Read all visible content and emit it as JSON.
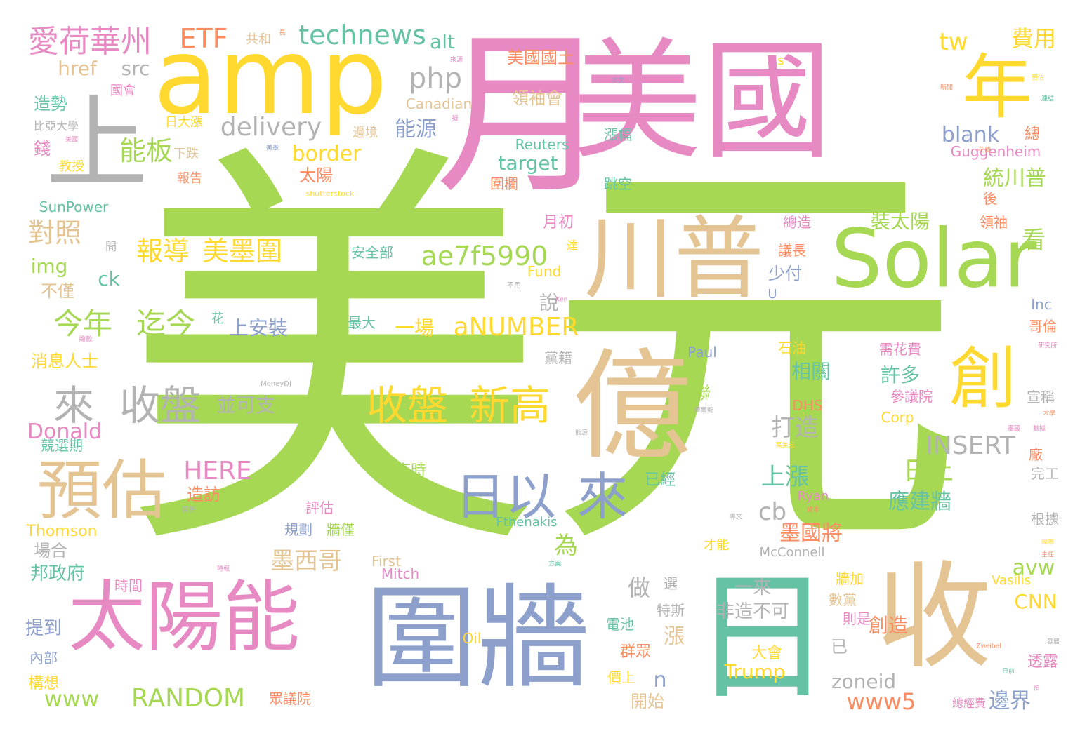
{
  "colors": {
    "green": "#a6d854",
    "pink": "#e78ac3",
    "yellow": "#ffd92f",
    "tan": "#e5c494",
    "blue": "#8da0cb",
    "teal": "#66c2a5",
    "orange": "#fc8d62",
    "gray": "#b3b3b3"
  },
  "words": [
    {
      "t": "美元",
      "c": "green"
    },
    {
      "t": "美國",
      "c": "pink"
    },
    {
      "t": "月",
      "c": "pink"
    },
    {
      "t": "amp",
      "c": "yellow"
    },
    {
      "t": "Solar",
      "c": "green"
    },
    {
      "t": "圍牆",
      "c": "blue"
    },
    {
      "t": "收",
      "c": "tan"
    },
    {
      "t": "日",
      "c": "teal"
    },
    {
      "t": "億",
      "c": "tan"
    },
    {
      "t": "川普",
      "c": "tan"
    },
    {
      "t": "太陽能",
      "c": "pink"
    },
    {
      "t": "上",
      "c": "gray"
    },
    {
      "t": "年",
      "c": "yellow"
    },
    {
      "t": "預估",
      "c": "tan"
    },
    {
      "t": "創",
      "c": "yellow"
    },
    {
      "t": "日以",
      "c": "blue"
    },
    {
      "t": "來",
      "c": "blue"
    },
    {
      "t": "收盤",
      "c": "yellow"
    },
    {
      "t": "新高",
      "c": "yellow"
    },
    {
      "t": "來",
      "c": "gray"
    },
    {
      "t": "收盤",
      "c": "gray"
    },
    {
      "t": "愛荷華州",
      "c": "pink"
    },
    {
      "t": "ETF",
      "c": "orange"
    },
    {
      "t": "technews",
      "c": "teal"
    },
    {
      "t": "alt",
      "c": "teal"
    },
    {
      "t": "tw",
      "c": "yellow"
    },
    {
      "t": "費用",
      "c": "yellow"
    },
    {
      "t": "美國國土",
      "c": "orange"
    },
    {
      "t": "領袖會",
      "c": "tan"
    },
    {
      "t": "php",
      "c": "gray"
    },
    {
      "t": "href",
      "c": "tan"
    },
    {
      "t": "src",
      "c": "gray"
    },
    {
      "t": "delivery",
      "c": "gray"
    },
    {
      "t": "能板",
      "c": "green"
    },
    {
      "t": "能源",
      "c": "blue"
    },
    {
      "t": "border",
      "c": "yellow"
    },
    {
      "t": "blank",
      "c": "blue"
    },
    {
      "t": "Reuters",
      "c": "teal"
    },
    {
      "t": "Guggenheim",
      "c": "pink"
    },
    {
      "t": "target",
      "c": "teal"
    },
    {
      "t": "太陽",
      "c": "orange"
    },
    {
      "t": "統川普",
      "c": "green"
    },
    {
      "t": "SunPower",
      "c": "teal"
    },
    {
      "t": "對照",
      "c": "tan"
    },
    {
      "t": "報導",
      "c": "yellow"
    },
    {
      "t": "美墨圍",
      "c": "yellow"
    },
    {
      "t": "ae7f5990",
      "c": "green"
    },
    {
      "t": "裝太陽",
      "c": "green"
    },
    {
      "t": "看",
      "c": "green"
    },
    {
      "t": "img",
      "c": "green"
    },
    {
      "t": "ck",
      "c": "teal"
    },
    {
      "t": "今年",
      "c": "green"
    },
    {
      "t": "迄今",
      "c": "green"
    },
    {
      "t": "上安裝",
      "c": "blue"
    },
    {
      "t": "一場",
      "c": "yellow"
    },
    {
      "t": "aNUMBER",
      "c": "yellow"
    },
    {
      "t": "並可支",
      "c": "gray"
    },
    {
      "t": "打造",
      "c": "gray"
    },
    {
      "t": "INSERT",
      "c": "gray"
    },
    {
      "t": "相關",
      "c": "teal"
    },
    {
      "t": "許多",
      "c": "teal"
    },
    {
      "t": "HERE",
      "c": "pink"
    },
    {
      "t": "上漲",
      "c": "teal"
    },
    {
      "t": "日上",
      "c": "green"
    },
    {
      "t": "應建牆",
      "c": "teal"
    },
    {
      "t": "cb",
      "c": "gray"
    },
    {
      "t": "墨國將",
      "c": "orange"
    },
    {
      "t": "為",
      "c": "green"
    },
    {
      "t": "墨西哥",
      "c": "tan"
    },
    {
      "t": "avw",
      "c": "green"
    },
    {
      "t": "Donald",
      "c": "pink"
    },
    {
      "t": "Thomson",
      "c": "yellow"
    },
    {
      "t": "邦政府",
      "c": "teal"
    },
    {
      "t": "做",
      "c": "gray"
    },
    {
      "t": "一來",
      "c": "gray"
    },
    {
      "t": "非造不可",
      "c": "gray"
    },
    {
      "t": "CNN",
      "c": "yellow"
    },
    {
      "t": "創造",
      "c": "orange"
    },
    {
      "t": "漲",
      "c": "tan"
    },
    {
      "t": "n",
      "c": "blue"
    },
    {
      "t": "www",
      "c": "green"
    },
    {
      "t": "RANDOM",
      "c": "green"
    },
    {
      "t": "zoneid",
      "c": "gray"
    },
    {
      "t": "www5",
      "c": "orange"
    },
    {
      "t": "邊界",
      "c": "blue"
    },
    {
      "t": "Trump",
      "c": "yellow"
    },
    {
      "t": "大會",
      "c": "yellow"
    },
    {
      "t": "透露",
      "c": "pink"
    },
    {
      "t": "構想",
      "c": "yellow"
    },
    {
      "t": "提到",
      "c": "blue"
    },
    {
      "t": "群眾",
      "c": "orange"
    },
    {
      "t": "開始",
      "c": "tan"
    },
    {
      "t": "消息人士",
      "c": "yellow"
    },
    {
      "t": "不僅",
      "c": "tan"
    },
    {
      "t": "造勢",
      "c": "teal"
    },
    {
      "t": "錢",
      "c": "pink"
    },
    {
      "t": "比亞大學",
      "c": "gray"
    },
    {
      "t": "教授",
      "c": "yellow"
    },
    {
      "t": "共和",
      "c": "tan"
    },
    {
      "t": "國會",
      "c": "pink"
    },
    {
      "t": "日大漲",
      "c": "yellow"
    },
    {
      "t": "下跌",
      "c": "tan"
    },
    {
      "t": "報告",
      "c": "orange"
    },
    {
      "t": "shutterstock",
      "c": "yellow"
    },
    {
      "t": "Canadian",
      "c": "tan"
    },
    {
      "t": "邊境",
      "c": "tan"
    },
    {
      "t": "漲幅",
      "c": "teal"
    },
    {
      "t": "跳空",
      "c": "teal"
    },
    {
      "t": "圍欄",
      "c": "orange"
    },
    {
      "t": "月初",
      "c": "pink"
    },
    {
      "t": "安全部",
      "c": "teal"
    },
    {
      "t": "少付",
      "c": "blue"
    },
    {
      "t": "說",
      "c": "gray"
    },
    {
      "t": "Fund",
      "c": "yellow"
    },
    {
      "t": "總造",
      "c": "pink"
    },
    {
      "t": "議長",
      "c": "orange"
    },
    {
      "t": "領袖",
      "c": "orange"
    },
    {
      "t": "後",
      "c": "orange"
    },
    {
      "t": "總",
      "c": "orange"
    },
    {
      "t": "s",
      "c": "yellow"
    },
    {
      "t": "Inc",
      "c": "blue"
    },
    {
      "t": "哥倫",
      "c": "orange"
    },
    {
      "t": "宣稱",
      "c": "gray"
    },
    {
      "t": "需花費",
      "c": "pink"
    },
    {
      "t": "參議院",
      "c": "pink"
    },
    {
      "t": "Corp",
      "c": "yellow"
    },
    {
      "t": "DHS",
      "c": "orange"
    },
    {
      "t": "黨籍",
      "c": "gray"
    },
    {
      "t": "Paul",
      "c": "blue"
    },
    {
      "t": "石油",
      "c": "yellow"
    },
    {
      "t": "聯",
      "c": "green"
    },
    {
      "t": "最大",
      "c": "teal"
    },
    {
      "t": "花",
      "c": "teal"
    },
    {
      "t": "MoneyDJ",
      "c": "gray"
    },
    {
      "t": "競選期",
      "c": "teal"
    },
    {
      "t": "造訪",
      "c": "orange"
    },
    {
      "t": "評估",
      "c": "pink"
    },
    {
      "t": "規劃",
      "c": "blue"
    },
    {
      "t": "牆僅",
      "c": "green"
    },
    {
      "t": "商時",
      "c": "green"
    },
    {
      "t": "首次",
      "c": "green"
    },
    {
      "t": "已經",
      "c": "teal"
    },
    {
      "t": "Ryan",
      "c": "pink"
    },
    {
      "t": "Fthenakis",
      "c": "teal"
    },
    {
      "t": "McConnell",
      "c": "gray"
    },
    {
      "t": "才能",
      "c": "yellow"
    },
    {
      "t": "First",
      "c": "tan"
    },
    {
      "t": "Mitch",
      "c": "pink"
    },
    {
      "t": "時間",
      "c": "pink"
    },
    {
      "t": "場合",
      "c": "gray"
    },
    {
      "t": "選",
      "c": "gray"
    },
    {
      "t": "特斯",
      "c": "gray"
    },
    {
      "t": "電池",
      "c": "teal"
    },
    {
      "t": "Oil",
      "c": "yellow"
    },
    {
      "t": "價上",
      "c": "yellow"
    },
    {
      "t": "眾議院",
      "c": "orange"
    },
    {
      "t": "已",
      "c": "gray"
    },
    {
      "t": "牆加",
      "c": "yellow"
    },
    {
      "t": "數黨",
      "c": "tan"
    },
    {
      "t": "則是",
      "c": "pink"
    },
    {
      "t": "總經費",
      "c": "pink"
    },
    {
      "t": "內部",
      "c": "blue"
    },
    {
      "t": "Vasilis",
      "c": "yellow"
    },
    {
      "t": "完工",
      "c": "gray"
    },
    {
      "t": "根據",
      "c": "gray"
    },
    {
      "t": "廠",
      "c": "orange"
    },
    {
      "t": "U",
      "c": "blue"
    },
    {
      "t": "間",
      "c": "gray"
    },
    {
      "t": "達",
      "c": "yellow"
    },
    {
      "t": "不用",
      "c": "gray"
    },
    {
      "t": "Ken",
      "c": "pink"
    },
    {
      "t": "撥款",
      "c": "pink"
    },
    {
      "t": "美墨",
      "c": "blue"
    },
    {
      "t": "本文",
      "c": "blue"
    },
    {
      "t": "新聞",
      "c": "orange"
    },
    {
      "t": "連結",
      "c": "teal"
    },
    {
      "t": "預估",
      "c": "yellow"
    },
    {
      "t": "長",
      "c": "orange"
    },
    {
      "t": "來源",
      "c": "pink"
    },
    {
      "t": "擬",
      "c": "pink"
    },
    {
      "t": "美國",
      "c": "pink"
    },
    {
      "t": "花費",
      "c": "orange"
    },
    {
      "t": "研究所",
      "c": "pink"
    },
    {
      "t": "華爾街",
      "c": "gray"
    },
    {
      "t": "大學",
      "c": "orange"
    },
    {
      "t": "數據",
      "c": "pink"
    },
    {
      "t": "萬美元",
      "c": "yellow"
    },
    {
      "t": "能源",
      "c": "gray"
    },
    {
      "t": "媒體",
      "c": "gray"
    },
    {
      "t": "成本",
      "c": "orange"
    },
    {
      "t": "專文",
      "c": "gray"
    },
    {
      "t": "時報",
      "c": "pink"
    },
    {
      "t": "方案",
      "c": "teal"
    },
    {
      "t": "主任",
      "c": "orange"
    },
    {
      "t": "Zweibel",
      "c": "orange"
    },
    {
      "t": "發展",
      "c": "gray"
    },
    {
      "t": "日前",
      "c": "teal"
    },
    {
      "t": "預",
      "c": "pink"
    },
    {
      "t": "國際",
      "c": "yellow"
    },
    {
      "t": "墨國",
      "c": "pink"
    }
  ]
}
